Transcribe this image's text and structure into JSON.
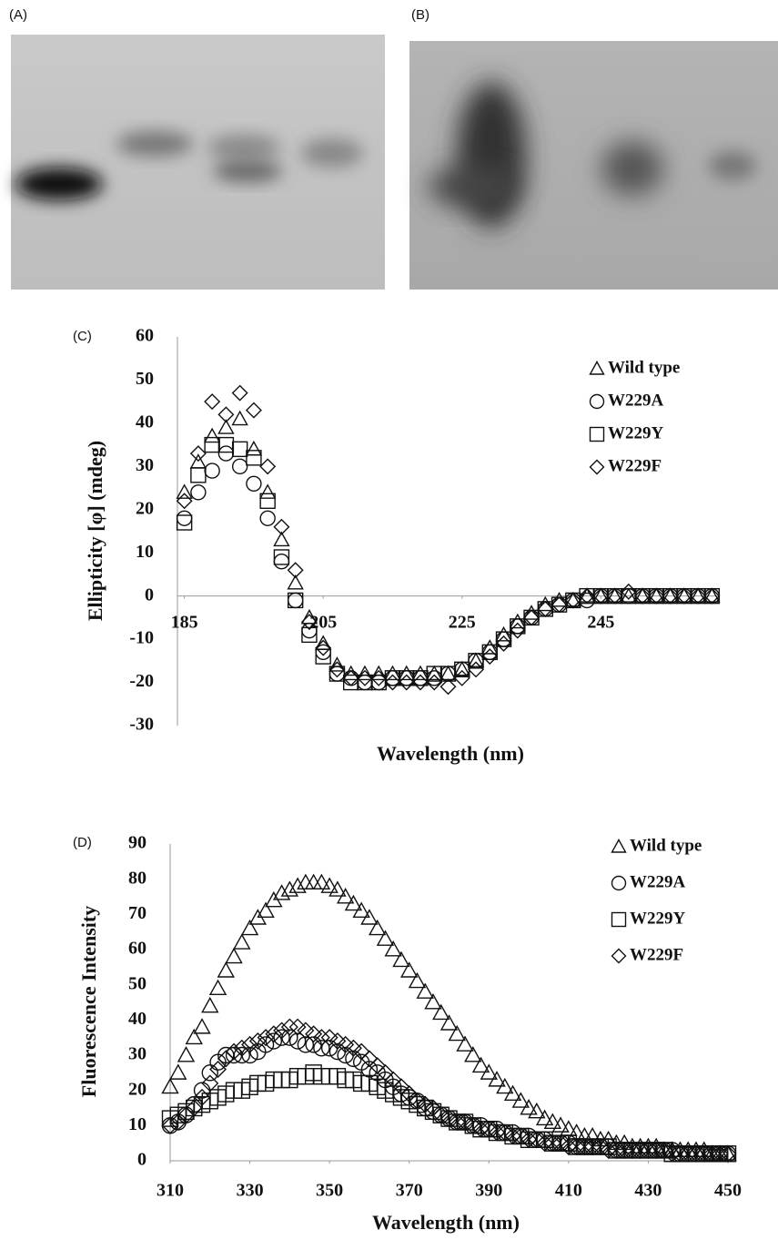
{
  "panels": [
    {
      "label": "(A)"
    },
    {
      "label": "(B)"
    }
  ],
  "chart_data": [
    {
      "type": "scatter",
      "panel_label": "(C)",
      "xlabel": "Wavelength (nm)",
      "ylabel": "Ellipticity [φ] (mdeg)",
      "xlim": [
        184,
        262
      ],
      "ylim": [
        -30,
        60
      ],
      "xticks": [
        185,
        205,
        225,
        245
      ],
      "yticks": [
        -30,
        -20,
        -10,
        0,
        10,
        20,
        30,
        40,
        50,
        60
      ],
      "grid": false,
      "legend": "upper right",
      "x": [
        185,
        187,
        189,
        191,
        193,
        195,
        197,
        199,
        201,
        203,
        205,
        207,
        209,
        211,
        213,
        215,
        217,
        219,
        221,
        223,
        225,
        227,
        229,
        231,
        233,
        235,
        237,
        239,
        241,
        243,
        245,
        247,
        249,
        251,
        253,
        255,
        257,
        259,
        261
      ],
      "series": [
        {
          "name": "Wild type",
          "marker": "triangle",
          "color": "#111111",
          "values": [
            24,
            31,
            37,
            39,
            41,
            34,
            24,
            13,
            3,
            -5,
            -11,
            -16,
            -18,
            -18,
            -18,
            -18,
            -18,
            -18,
            -18,
            -18,
            -17,
            -15,
            -12,
            -9,
            -6,
            -4,
            -2,
            -1,
            -1,
            0,
            0,
            0,
            0,
            0,
            0,
            0,
            0,
            0,
            0
          ]
        },
        {
          "name": "W229A",
          "marker": "circle",
          "color": "#111111",
          "values": [
            18,
            24,
            29,
            33,
            30,
            26,
            18,
            8,
            -1,
            -8,
            -13,
            -18,
            -19,
            -20,
            -20,
            -19,
            -19,
            -19,
            -19,
            -18,
            -17,
            -15,
            -13,
            -10,
            -7,
            -5,
            -3,
            -2,
            -1,
            -1,
            0,
            0,
            0,
            0,
            0,
            0,
            0,
            0,
            0
          ]
        },
        {
          "name": "W229Y",
          "marker": "square",
          "color": "#111111",
          "values": [
            17,
            28,
            35,
            35,
            34,
            32,
            22,
            9,
            -1,
            -9,
            -14,
            -18,
            -20,
            -20,
            -20,
            -19,
            -19,
            -19,
            -18,
            -18,
            -17,
            -15,
            -13,
            -10,
            -7,
            -5,
            -3,
            -2,
            -1,
            0,
            0,
            0,
            0,
            0,
            0,
            0,
            0,
            0,
            0
          ]
        },
        {
          "name": "W229F",
          "marker": "diamond",
          "color": "#111111",
          "values": [
            22,
            33,
            45,
            42,
            47,
            43,
            30,
            16,
            6,
            -6,
            -12,
            -17,
            -19,
            -19,
            -19,
            -20,
            -20,
            -20,
            -20,
            -21,
            -19,
            -17,
            -14,
            -11,
            -8,
            -5,
            -3,
            -2,
            -1,
            0,
            0,
            0,
            1,
            0,
            0,
            0,
            0,
            0,
            0
          ]
        }
      ]
    },
    {
      "type": "scatter",
      "panel_label": "(D)",
      "xlabel": "Wavelength (nm)",
      "ylabel": "Fluorescence Intensity",
      "xlim": [
        310,
        450
      ],
      "ylim": [
        0,
        90
      ],
      "xticks": [
        310,
        330,
        350,
        370,
        390,
        410,
        430,
        450
      ],
      "yticks": [
        0,
        10,
        20,
        30,
        40,
        50,
        60,
        70,
        80,
        90
      ],
      "grid": false,
      "legend": "upper right",
      "x": [
        310,
        312,
        314,
        316,
        318,
        320,
        322,
        324,
        326,
        328,
        330,
        332,
        334,
        336,
        338,
        340,
        342,
        344,
        346,
        348,
        350,
        352,
        354,
        356,
        358,
        360,
        362,
        364,
        366,
        368,
        370,
        372,
        374,
        376,
        378,
        380,
        382,
        384,
        386,
        388,
        390,
        392,
        394,
        396,
        398,
        400,
        402,
        404,
        406,
        408,
        410,
        412,
        414,
        416,
        418,
        420,
        422,
        424,
        426,
        428,
        430,
        432,
        434,
        436,
        438,
        440,
        442,
        444,
        446,
        448,
        450
      ],
      "series": [
        {
          "name": "Wild type",
          "marker": "triangle",
          "color": "#111111",
          "values": [
            21,
            25,
            30,
            35,
            38,
            44,
            49,
            54,
            58,
            62,
            66,
            69,
            71,
            74,
            76,
            77,
            78,
            79,
            79,
            79,
            78,
            77,
            75,
            73,
            71,
            69,
            66,
            63,
            60,
            57,
            54,
            51,
            48,
            45,
            42,
            39,
            36,
            33,
            30,
            27,
            25,
            23,
            21,
            19,
            17,
            15,
            14,
            12,
            11,
            10,
            9,
            8,
            7,
            7,
            6,
            6,
            5,
            5,
            4,
            4,
            4,
            4,
            3,
            3,
            3,
            3,
            3,
            3,
            2,
            2,
            2
          ]
        },
        {
          "name": "W229A",
          "marker": "circle",
          "color": "#111111",
          "values": [
            10,
            11,
            13,
            16,
            20,
            25,
            28,
            30,
            30,
            30,
            30,
            31,
            33,
            34,
            35,
            35,
            34,
            33,
            33,
            32,
            32,
            31,
            30,
            29,
            28,
            26,
            25,
            23,
            21,
            19,
            18,
            17,
            15,
            14,
            13,
            12,
            11,
            11,
            10,
            10,
            9,
            9,
            8,
            8,
            7,
            7,
            6,
            6,
            5,
            5,
            5,
            4,
            4,
            4,
            4,
            4,
            3,
            3,
            3,
            3,
            3,
            3,
            3,
            3,
            2,
            2,
            2,
            2,
            2,
            2,
            2
          ]
        },
        {
          "name": "W229Y",
          "marker": "square",
          "color": "#111111",
          "values": [
            12,
            13,
            14,
            15,
            16,
            17,
            18,
            19,
            20,
            20,
            21,
            22,
            22,
            23,
            23,
            23,
            24,
            24,
            25,
            24,
            24,
            24,
            23,
            23,
            22,
            22,
            21,
            20,
            19,
            18,
            17,
            16,
            15,
            14,
            13,
            12,
            11,
            11,
            10,
            9,
            9,
            8,
            8,
            7,
            7,
            6,
            6,
            6,
            5,
            5,
            5,
            4,
            4,
            4,
            4,
            4,
            3,
            3,
            3,
            3,
            3,
            3,
            3,
            2,
            2,
            2,
            2,
            2,
            2,
            2,
            2
          ]
        },
        {
          "name": "W229F",
          "marker": "diamond",
          "color": "#111111",
          "values": [
            10,
            11,
            13,
            15,
            18,
            22,
            26,
            29,
            31,
            32,
            33,
            34,
            35,
            36,
            37,
            38,
            38,
            37,
            36,
            35,
            35,
            34,
            33,
            32,
            31,
            29,
            27,
            25,
            23,
            21,
            19,
            17,
            16,
            15,
            13,
            12,
            11,
            11,
            10,
            9,
            9,
            8,
            8,
            7,
            7,
            6,
            6,
            5,
            5,
            5,
            4,
            4,
            4,
            4,
            4,
            3,
            3,
            3,
            3,
            3,
            3,
            3,
            3,
            2,
            2,
            2,
            2,
            2,
            2,
            2,
            2
          ]
        }
      ]
    }
  ]
}
